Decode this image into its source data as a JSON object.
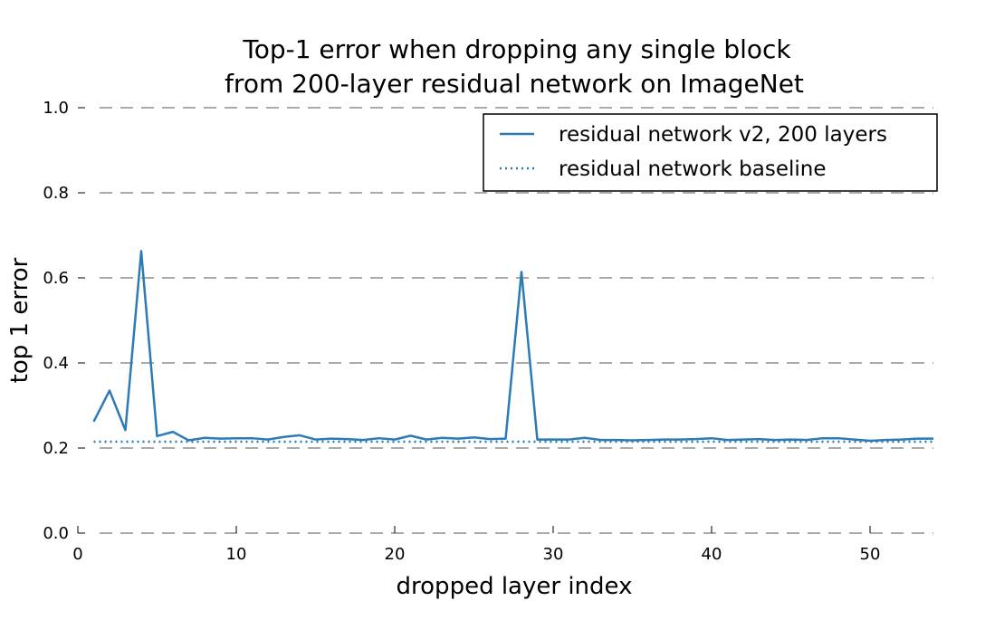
{
  "chart_data": {
    "type": "line",
    "title": [
      "Top-1 error when dropping any single block",
      "from 200-layer residual network on ImageNet"
    ],
    "xlabel": "dropped layer index",
    "ylabel": "top 1 error",
    "xlim": [
      0,
      54
    ],
    "ylim": [
      0.0,
      1.0
    ],
    "xticks": [
      0,
      10,
      20,
      30,
      40,
      50
    ],
    "xtick_labels": [
      "0",
      "10",
      "20",
      "30",
      "40",
      "50"
    ],
    "yticks": [
      0.0,
      0.2,
      0.4,
      0.6,
      0.8,
      1.0
    ],
    "ytick_labels": [
      "0.0",
      "0.2",
      "0.4",
      "0.6",
      "0.8",
      "1.0"
    ],
    "grid": "horizontal dashed",
    "legend_position": "top-right",
    "series": [
      {
        "name": "residual network v2, 200 layers",
        "style": "solid",
        "color": "#2c7bb6",
        "x": [
          1,
          2,
          3,
          4,
          5,
          6,
          7,
          8,
          9,
          10,
          11,
          12,
          13,
          14,
          15,
          16,
          17,
          18,
          19,
          20,
          21,
          22,
          23,
          24,
          25,
          26,
          27,
          28,
          29,
          30,
          31,
          32,
          33,
          34,
          35,
          36,
          37,
          38,
          39,
          40,
          41,
          42,
          43,
          44,
          45,
          46,
          47,
          48,
          49,
          50,
          51,
          52,
          53,
          54
        ],
        "y": [
          0.262,
          0.335,
          0.242,
          0.663,
          0.228,
          0.238,
          0.218,
          0.224,
          0.222,
          0.223,
          0.223,
          0.22,
          0.226,
          0.23,
          0.22,
          0.222,
          0.221,
          0.219,
          0.223,
          0.22,
          0.229,
          0.22,
          0.224,
          0.222,
          0.225,
          0.221,
          0.222,
          0.614,
          0.22,
          0.22,
          0.22,
          0.224,
          0.219,
          0.219,
          0.218,
          0.219,
          0.22,
          0.22,
          0.221,
          0.223,
          0.219,
          0.22,
          0.221,
          0.219,
          0.22,
          0.219,
          0.223,
          0.223,
          0.22,
          0.217,
          0.219,
          0.22,
          0.222,
          0.222
        ]
      },
      {
        "name": "residual network baseline",
        "style": "dotted",
        "color": "#2c7bb6",
        "x": [
          1,
          54
        ],
        "y": [
          0.215,
          0.215
        ]
      }
    ]
  }
}
